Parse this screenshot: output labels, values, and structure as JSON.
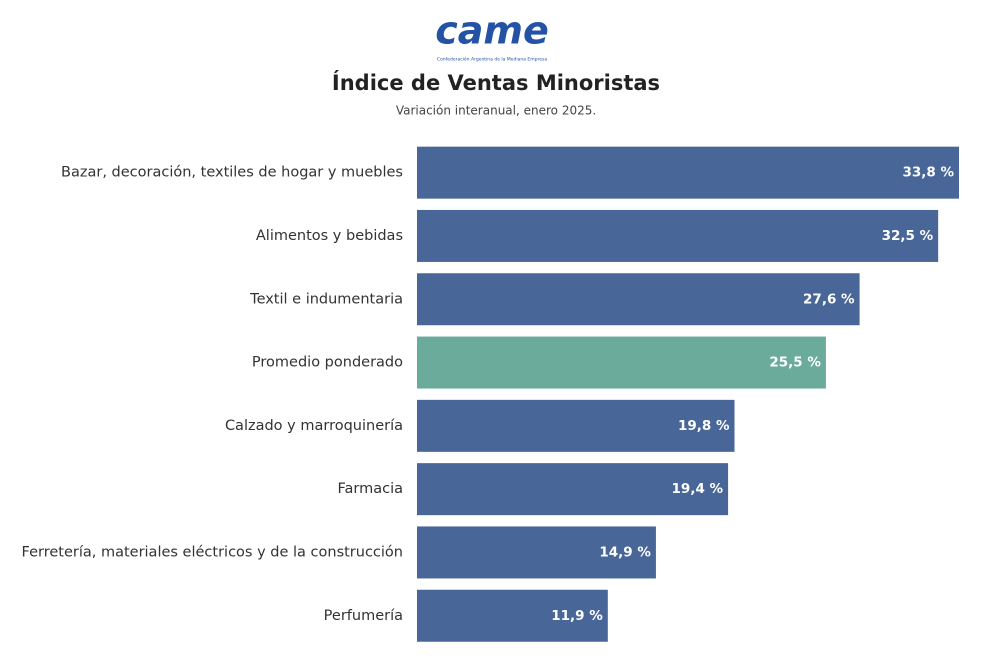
{
  "chart_data": {
    "type": "bar",
    "orientation": "horizontal",
    "logo": "came",
    "logo_caption": "Confederación Argentina de la Mediana Empresa",
    "title": "Índice de Ventas Minoristas",
    "subtitle": "Variación interanual, enero 2025.",
    "categories": [
      "Bazar, decoración, textiles de hogar y muebles",
      "Alimentos y bebidas",
      "Textil e indumentaria",
      "Promedio ponderado",
      "Calzado y marroquinería",
      "Farmacia",
      "Ferretería, materiales eléctricos y de la construcción",
      "Perfumería"
    ],
    "values": [
      33.8,
      32.5,
      27.6,
      25.5,
      19.8,
      19.4,
      14.9,
      11.9
    ],
    "value_labels": [
      "33,8 %",
      "32,5 %",
      "27,6 %",
      "25,5 %",
      "19,8 %",
      "19,4 %",
      "14,9 %",
      "11,9 %"
    ],
    "colors": [
      "#496699",
      "#496699",
      "#496699",
      "#6aab9b",
      "#496699",
      "#496699",
      "#496699",
      "#496699"
    ]
  }
}
